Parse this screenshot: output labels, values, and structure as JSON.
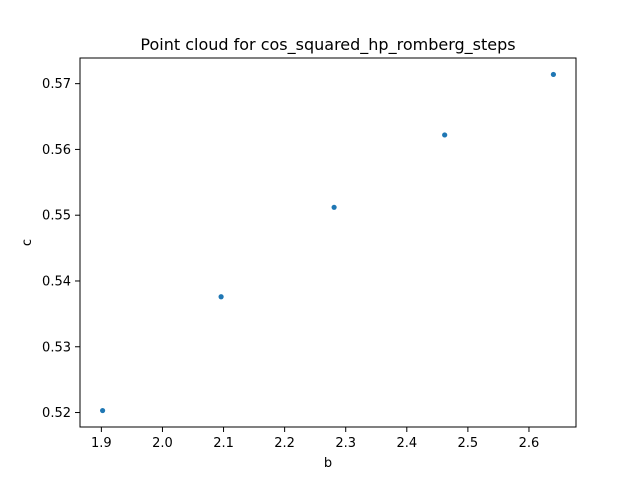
{
  "chart_data": {
    "type": "scatter",
    "title": "Point cloud for cos_squared_hp_romberg_steps",
    "xlabel": "b",
    "ylabel": "c",
    "series": [
      {
        "x": [
          1.902,
          2.096,
          2.281,
          2.462,
          2.64
        ],
        "y": [
          0.5203,
          0.5376,
          0.5512,
          0.5622,
          0.5714
        ],
        "color": "#1f77b4"
      }
    ],
    "xlim": [
      1.865,
      2.677
    ],
    "ylim": [
      0.5178,
      0.5739
    ],
    "xticks": [
      1.9,
      2.0,
      2.1,
      2.2,
      2.3,
      2.4,
      2.5,
      2.6
    ],
    "xtick_labels": [
      "1.9",
      "2.0",
      "2.1",
      "2.2",
      "2.3",
      "2.4",
      "2.5",
      "2.6"
    ],
    "yticks": [
      0.52,
      0.53,
      0.54,
      0.55,
      0.56,
      0.57
    ],
    "ytick_labels": [
      "0.52",
      "0.53",
      "0.54",
      "0.55",
      "0.56",
      "0.57"
    ],
    "grid": false,
    "legend": false
  }
}
